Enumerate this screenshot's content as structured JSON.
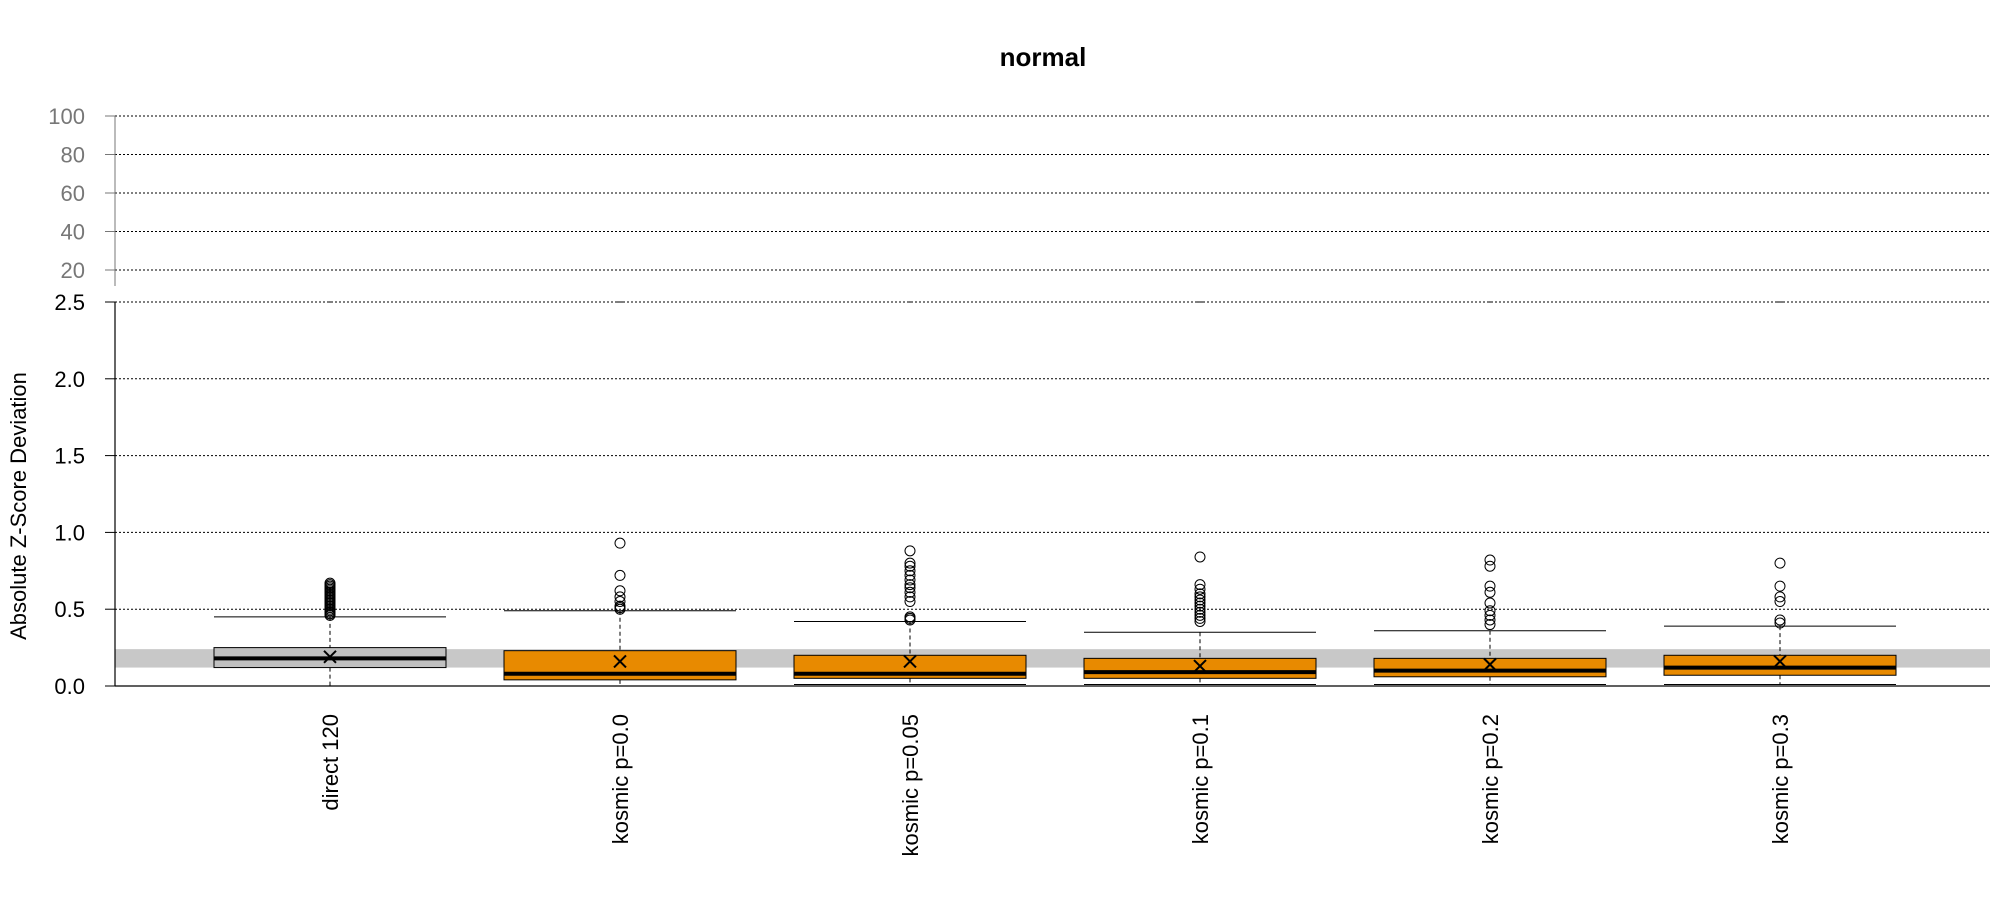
{
  "chart_data": {
    "type": "boxplot",
    "title": "normal",
    "ylabel": "Absolute Z-Score Deviation",
    "ylim": [
      0,
      2.5
    ],
    "yticks": [
      "0.0",
      "0.5",
      "1.0",
      "1.5",
      "2.0",
      "2.5"
    ],
    "top_panel": {
      "ylim": [
        20,
        100
      ],
      "yticks": [
        "20",
        "40",
        "60",
        "80",
        "100"
      ]
    },
    "reference_band": {
      "low": 0.12,
      "high": 0.24,
      "color": "#c8c8c8"
    },
    "grid": true,
    "categories": [
      "direct 120",
      "kosmic p=0.0",
      "kosmic p=0.05",
      "kosmic p=0.1",
      "kosmic p=0.2",
      "kosmic p=0.3"
    ],
    "series": [
      {
        "min": 0.0,
        "q1": 0.12,
        "median": 0.18,
        "q3": 0.25,
        "max": 0.45,
        "mean": 0.19,
        "outliers": [
          0.46,
          0.47,
          0.48,
          0.49,
          0.5,
          0.51,
          0.52,
          0.53,
          0.54,
          0.55,
          0.56,
          0.57,
          0.58,
          0.59,
          0.6,
          0.61,
          0.62,
          0.63,
          0.64,
          0.65,
          0.66,
          0.67
        ],
        "fill": "#c0c0c0"
      },
      {
        "min": 0.0,
        "q1": 0.04,
        "median": 0.08,
        "q3": 0.23,
        "max": 0.49,
        "mean": 0.16,
        "outliers": [
          0.5,
          0.51,
          0.52,
          0.55,
          0.58,
          0.62,
          0.72,
          0.93
        ],
        "fill": "#e88a00"
      },
      {
        "min": 0.01,
        "q1": 0.05,
        "median": 0.08,
        "q3": 0.2,
        "max": 0.42,
        "mean": 0.16,
        "outliers": [
          0.43,
          0.44,
          0.45,
          0.55,
          0.58,
          0.61,
          0.64,
          0.66,
          0.69,
          0.72,
          0.75,
          0.78,
          0.8,
          0.88
        ],
        "fill": "#e88a00"
      },
      {
        "min": 0.01,
        "q1": 0.05,
        "median": 0.09,
        "q3": 0.18,
        "max": 0.35,
        "mean": 0.13,
        "outliers": [
          0.42,
          0.44,
          0.46,
          0.48,
          0.5,
          0.52,
          0.54,
          0.56,
          0.58,
          0.6,
          0.63,
          0.66,
          0.84
        ],
        "fill": "#e88a00"
      },
      {
        "min": 0.01,
        "q1": 0.06,
        "median": 0.1,
        "q3": 0.18,
        "max": 0.36,
        "mean": 0.14,
        "outliers": [
          0.4,
          0.43,
          0.46,
          0.49,
          0.54,
          0.61,
          0.65,
          0.78,
          0.82
        ],
        "fill": "#e88a00"
      },
      {
        "min": 0.01,
        "q1": 0.07,
        "median": 0.12,
        "q3": 0.2,
        "max": 0.39,
        "mean": 0.16,
        "outliers": [
          0.41,
          0.43,
          0.55,
          0.58,
          0.65,
          0.8
        ],
        "fill": "#e88a00"
      }
    ]
  }
}
